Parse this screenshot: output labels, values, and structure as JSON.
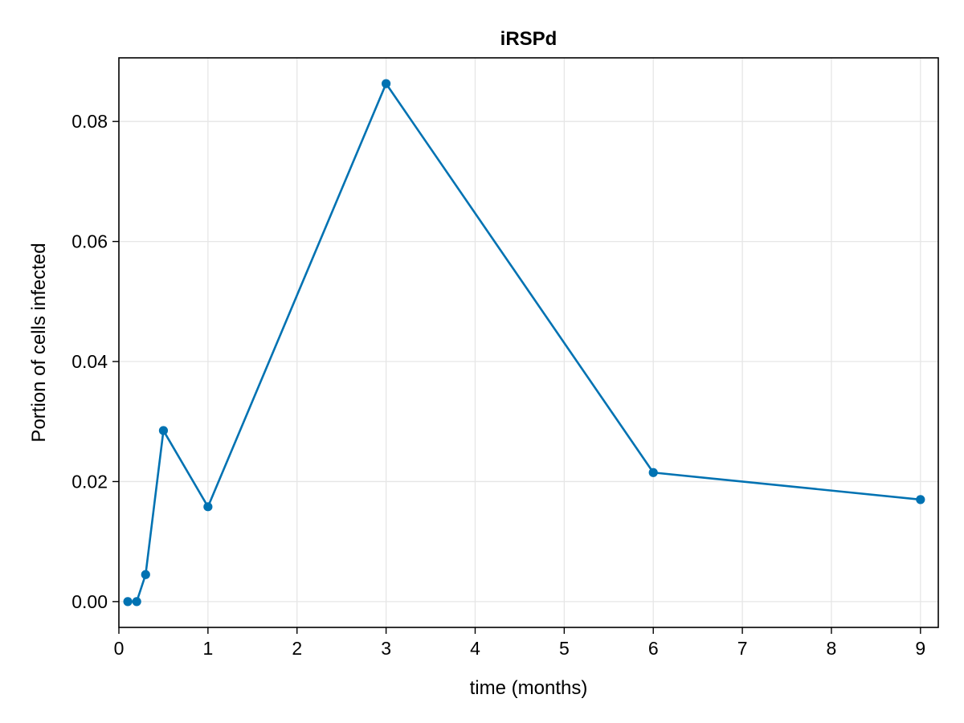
{
  "chart_data": {
    "type": "line",
    "title": "iRSPd",
    "xlabel": "time (months)",
    "ylabel": "Portion of cells infected",
    "xlim": [
      0,
      9.2
    ],
    "ylim": [
      -0.0043,
      0.0906
    ],
    "x_ticks": [
      0,
      1,
      2,
      3,
      4,
      5,
      6,
      7,
      8,
      9
    ],
    "x_tick_labels": [
      "0",
      "1",
      "2",
      "3",
      "4",
      "5",
      "6",
      "7",
      "8",
      "9"
    ],
    "y_ticks": [
      0.0,
      0.02,
      0.04,
      0.06,
      0.08
    ],
    "y_tick_labels": [
      "0.00",
      "0.02",
      "0.04",
      "0.06",
      "0.08"
    ],
    "grid": true,
    "legend": "none",
    "colors": {
      "series": "#0072b2",
      "grid": "#e6e6e6",
      "frame": "#000000"
    },
    "series": [
      {
        "x": [
          0.1,
          0.2,
          0.3,
          0.5,
          1,
          3,
          6,
          9
        ],
        "y": [
          0.0,
          0.0,
          0.0045,
          0.0285,
          0.0158,
          0.0863,
          0.0215,
          0.017
        ],
        "marker": "circle"
      }
    ]
  }
}
